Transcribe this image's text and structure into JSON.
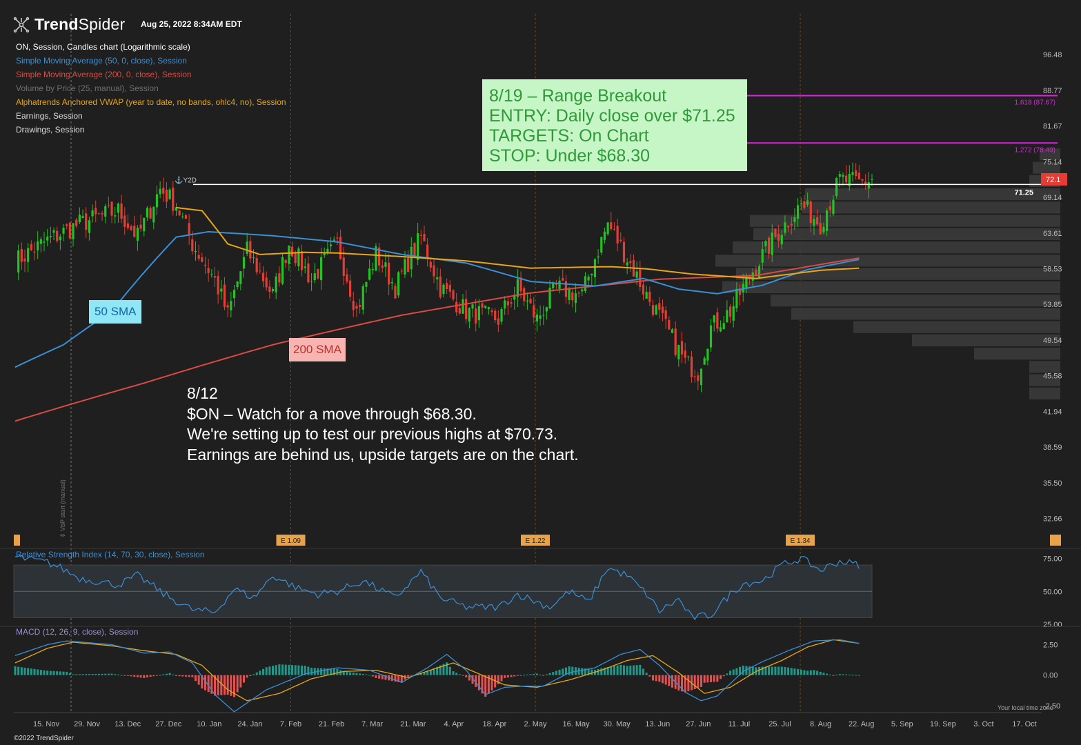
{
  "header": {
    "brand_bold": "Trend",
    "brand_light": "Spider",
    "timestamp": "Aug 25, 2022 8:34AM EDT",
    "footer": "©2022 TrendSpider",
    "timezone_note": "Your local time zone",
    "vbp_note": "⇕ VbP start (manual)"
  },
  "legend": [
    {
      "text": "ON, Session, Candles chart (Logarithmic scale)",
      "color": "#ffffff"
    },
    {
      "text": "Simple Moving Average (50, 0, close), Session",
      "color": "#3b8fd6"
    },
    {
      "text": "Simple Moving Average (200, 0, close), Session",
      "color": "#d94b43"
    },
    {
      "text": "Volume by Price (25, manual), Session",
      "color": "#6e6e6e"
    },
    {
      "text": "Alphatrends Anchored VWAP (year to date, no bands, ohlc4, no), Session",
      "color": "#e8a614"
    },
    {
      "text": "Earnings, Session",
      "color": "#dddddd"
    },
    {
      "text": "Drawings, Session",
      "color": "#dddddd"
    }
  ],
  "annotations": {
    "breakout": [
      "8/19 – Range Breakout",
      "ENTRY: Daily close over $71.25",
      "TARGETS: On Chart",
      "STOP: Under $68.30"
    ],
    "setup": [
      "8/12",
      "$ON – Watch for a move through $68.30.",
      "We're setting up to test our previous highs at $70.73.",
      "Earnings are behind us, upside targets are on the chart."
    ],
    "sma50_label": "50 SMA",
    "sma200_label": "200 SMA",
    "anchor_label": "⚓Y2D"
  },
  "chart_data": [
    {
      "type": "candlestick",
      "scale": "log",
      "ylim": [
        31.2,
        99.5
      ],
      "yticks": [
        "96.48",
        "88.77",
        "81.67",
        "75.14",
        "69.14",
        "63.61",
        "58.53",
        "53.85",
        "49.54",
        "45.58",
        "41.94",
        "38.59",
        "35.50",
        "32.66"
      ],
      "xticks": [
        "15. Nov",
        "29. Nov",
        "13. Dec",
        "27. Dec",
        "10. Jan",
        "24. Jan",
        "7. Feb",
        "21. Feb",
        "7. Mar",
        "21. Mar",
        "4. Apr",
        "18. Apr",
        "2. May",
        "16. May",
        "30. May",
        "13. Jun",
        "27. Jun",
        "11. Jul",
        "25. Jul",
        "8. Aug",
        "22. Aug",
        "5. Sep",
        "19. Sep",
        "3. Oct",
        "17. Oct"
      ],
      "last_price": "72.1",
      "horizontal_levels": [
        {
          "value": 71.25,
          "label": "71.25",
          "color": "#ffffff"
        },
        {
          "value": 78.49,
          "label": "1.272 (78.49)",
          "color": "#e020e0"
        },
        {
          "value": 87.67,
          "label": "1.618 (87.67)",
          "color": "#e020e0"
        }
      ],
      "earnings": [
        {
          "label": "E 1.09",
          "date": "7. Feb"
        },
        {
          "label": "E 1.22",
          "date": "2. May"
        },
        {
          "label": "E 1.34",
          "date": "1. Aug"
        }
      ],
      "close_anchors": [
        [
          0,
          59.5
        ],
        [
          10,
          62.5
        ],
        [
          20,
          65
        ],
        [
          32,
          67
        ],
        [
          38,
          63
        ],
        [
          45,
          70.5
        ],
        [
          50,
          68
        ],
        [
          55,
          62
        ],
        [
          62,
          57
        ],
        [
          66,
          52.5
        ],
        [
          72,
          61
        ],
        [
          80,
          55
        ],
        [
          85,
          62
        ],
        [
          92,
          57
        ],
        [
          100,
          62
        ],
        [
          106,
          53
        ],
        [
          112,
          60.5
        ],
        [
          118,
          56
        ],
        [
          126,
          63
        ],
        [
          132,
          56
        ],
        [
          140,
          53
        ],
        [
          150,
          52
        ],
        [
          156,
          56
        ],
        [
          162,
          52
        ],
        [
          168,
          56
        ],
        [
          176,
          55
        ],
        [
          184,
          65
        ],
        [
          190,
          60
        ],
        [
          196,
          55
        ],
        [
          202,
          51
        ],
        [
          208,
          47
        ],
        [
          212,
          46
        ],
        [
          216,
          51
        ],
        [
          222,
          53
        ],
        [
          230,
          59
        ],
        [
          236,
          63
        ],
        [
          244,
          68
        ],
        [
          250,
          65
        ],
        [
          256,
          72
        ],
        [
          262,
          71.5
        ],
        [
          266,
          72.1
        ]
      ],
      "sma50_anchors": [
        [
          0,
          46.5
        ],
        [
          15,
          49
        ],
        [
          30,
          53
        ],
        [
          42,
          59
        ],
        [
          50,
          63
        ],
        [
          60,
          63.8
        ],
        [
          80,
          63.2
        ],
        [
          100,
          62.3
        ],
        [
          120,
          60.5
        ],
        [
          140,
          59.3
        ],
        [
          160,
          56.8
        ],
        [
          180,
          56.2
        ],
        [
          195,
          57.2
        ],
        [
          206,
          55.8
        ],
        [
          218,
          55.2
        ],
        [
          232,
          56.3
        ],
        [
          246,
          58.4
        ],
        [
          262,
          59.8
        ]
      ],
      "sma200_anchors": [
        [
          0,
          41
        ],
        [
          40,
          44.8
        ],
        [
          80,
          49
        ],
        [
          120,
          52.5
        ],
        [
          160,
          55.3
        ],
        [
          200,
          57.1
        ],
        [
          230,
          57.6
        ],
        [
          262,
          60
        ]
      ],
      "vwap_anchors": [
        [
          50,
          67.5
        ],
        [
          58,
          67
        ],
        [
          66,
          62
        ],
        [
          76,
          60.5
        ],
        [
          90,
          60.8
        ],
        [
          100,
          60.7
        ],
        [
          120,
          60.2
        ],
        [
          140,
          59.6
        ],
        [
          160,
          58.6
        ],
        [
          185,
          58.8
        ],
        [
          196,
          58.5
        ],
        [
          210,
          57.8
        ],
        [
          230,
          57.2
        ],
        [
          250,
          58.3
        ],
        [
          262,
          58.6
        ]
      ],
      "volume_profile": [
        0.09,
        0.09,
        0.09,
        0.25,
        0.43,
        0.6,
        0.78,
        0.84,
        0.98,
        0.94,
        1.0,
        0.95,
        0.89,
        0.9,
        0.75,
        0.74,
        0.09,
        0.08,
        0.06
      ]
    },
    {
      "type": "line",
      "title": "Relative Strength Index (14, 70, 30, close), Session",
      "ylim": [
        25,
        80
      ],
      "yticks": [
        "75.00",
        "50.00",
        "25.00"
      ],
      "band": [
        30,
        70
      ],
      "anchors": [
        [
          0,
          76
        ],
        [
          10,
          72
        ],
        [
          14,
          68
        ],
        [
          20,
          60
        ],
        [
          32,
          55
        ],
        [
          38,
          62
        ],
        [
          44,
          52
        ],
        [
          46,
          48
        ],
        [
          55,
          36
        ],
        [
          62,
          34
        ],
        [
          68,
          52
        ],
        [
          74,
          45
        ],
        [
          80,
          62
        ],
        [
          88,
          52
        ],
        [
          94,
          48
        ],
        [
          100,
          50
        ],
        [
          108,
          58
        ],
        [
          118,
          45
        ],
        [
          126,
          65
        ],
        [
          132,
          45
        ],
        [
          140,
          38
        ],
        [
          150,
          38
        ],
        [
          156,
          48
        ],
        [
          162,
          42
        ],
        [
          166,
          38
        ],
        [
          172,
          50
        ],
        [
          178,
          42
        ],
        [
          184,
          68
        ],
        [
          190,
          62
        ],
        [
          196,
          48
        ],
        [
          200,
          35
        ],
        [
          206,
          44
        ],
        [
          210,
          30
        ],
        [
          216,
          32
        ],
        [
          222,
          48
        ],
        [
          226,
          56
        ],
        [
          232,
          58
        ],
        [
          238,
          70
        ],
        [
          244,
          75
        ],
        [
          250,
          66
        ],
        [
          256,
          73
        ],
        [
          262,
          70
        ]
      ]
    },
    {
      "type": "line",
      "title": "MACD (12, 26, 9, close), Session",
      "ylim": [
        -2.9,
        3.6
      ],
      "yticks": [
        "2.50",
        "0.00",
        "-2.50"
      ],
      "macd_anchors": [
        [
          0,
          1.6
        ],
        [
          10,
          2.5
        ],
        [
          16,
          2.8
        ],
        [
          30,
          2.5
        ],
        [
          40,
          1.8
        ],
        [
          48,
          1.9
        ],
        [
          55,
          1.0
        ],
        [
          62,
          -1.6
        ],
        [
          68,
          -3.0
        ],
        [
          78,
          -1.2
        ],
        [
          90,
          0.1
        ],
        [
          100,
          0.6
        ],
        [
          110,
          0.4
        ],
        [
          120,
          -0.6
        ],
        [
          128,
          0.6
        ],
        [
          134,
          1.7
        ],
        [
          140,
          0.4
        ],
        [
          146,
          -1.6
        ],
        [
          152,
          -1.0
        ],
        [
          158,
          -0.9
        ],
        [
          164,
          -0.9
        ],
        [
          172,
          0.2
        ],
        [
          180,
          0.6
        ],
        [
          188,
          1.7
        ],
        [
          194,
          2.1
        ],
        [
          200,
          0.8
        ],
        [
          208,
          -1.4
        ],
        [
          213,
          -2.1
        ],
        [
          218,
          -1.7
        ],
        [
          226,
          0.3
        ],
        [
          232,
          1.1
        ],
        [
          240,
          2.0
        ],
        [
          248,
          2.8
        ],
        [
          256,
          2.9
        ],
        [
          262,
          2.6
        ]
      ],
      "signal_anchors": [
        [
          0,
          1.0
        ],
        [
          10,
          2.2
        ],
        [
          18,
          2.7
        ],
        [
          30,
          2.4
        ],
        [
          40,
          2.0
        ],
        [
          50,
          1.7
        ],
        [
          58,
          0.8
        ],
        [
          66,
          -1.2
        ],
        [
          72,
          -2.1
        ],
        [
          82,
          -1.5
        ],
        [
          92,
          -0.3
        ],
        [
          102,
          0.3
        ],
        [
          112,
          0.4
        ],
        [
          122,
          -0.2
        ],
        [
          130,
          0.5
        ],
        [
          136,
          1.0
        ],
        [
          144,
          0.1
        ],
        [
          152,
          -0.8
        ],
        [
          162,
          -1.0
        ],
        [
          172,
          -0.4
        ],
        [
          182,
          0.4
        ],
        [
          190,
          1.2
        ],
        [
          198,
          1.6
        ],
        [
          206,
          0.2
        ],
        [
          214,
          -1.5
        ],
        [
          222,
          -1.0
        ],
        [
          230,
          0.3
        ],
        [
          238,
          1.2
        ],
        [
          246,
          2.3
        ],
        [
          254,
          2.9
        ],
        [
          262,
          2.6
        ]
      ]
    }
  ]
}
